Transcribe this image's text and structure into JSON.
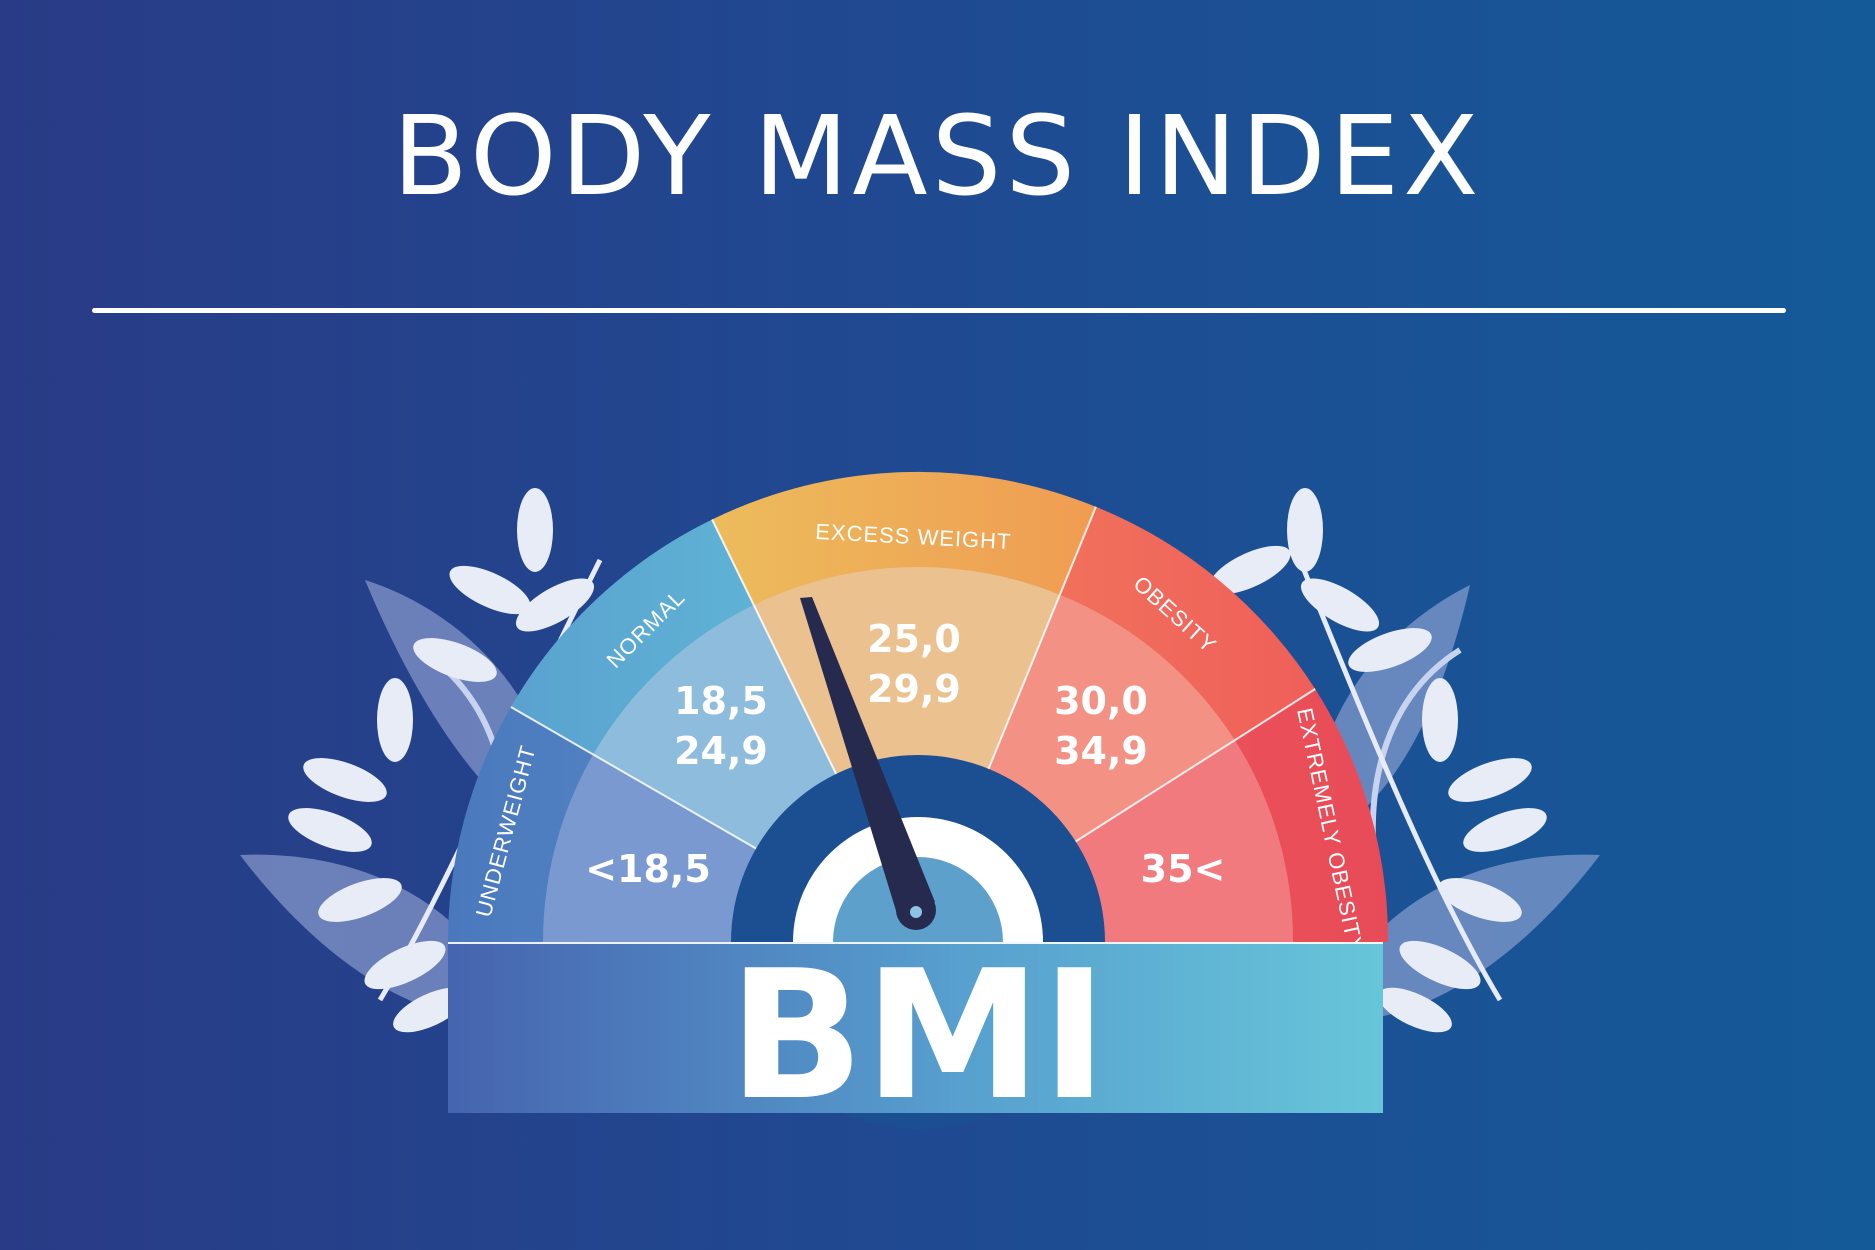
{
  "title": "BODY MASS INDEX",
  "gauge": {
    "center_label": "BMI",
    "segments": [
      {
        "name": "UNDERWEIGHT",
        "range_line1": "<18,5",
        "range_line2": ""
      },
      {
        "name": "NORMAL",
        "range_line1": "18,5",
        "range_line2": "24,9"
      },
      {
        "name": "EXCESS WEIGHT",
        "range_line1": "25,0",
        "range_line2": "29,9"
      },
      {
        "name": "OBESITY",
        "range_line1": "30,0",
        "range_line2": "34,9"
      },
      {
        "name": "EXTREMELY OBESITY",
        "range_line1": "35<",
        "range_line2": ""
      }
    ]
  },
  "colors": {
    "background": "#1f4a92",
    "underweight": "#4f7fc0",
    "normal": "#5fb3d6",
    "excess_weight": "#efb25a",
    "obesity": "#ef6a5a",
    "extremely_obesity": "#e94e5a",
    "needle": "#262a4f",
    "hub": "#1c4f92"
  },
  "icons": [
    "leaf-branch-left",
    "leaf-branch-right"
  ]
}
